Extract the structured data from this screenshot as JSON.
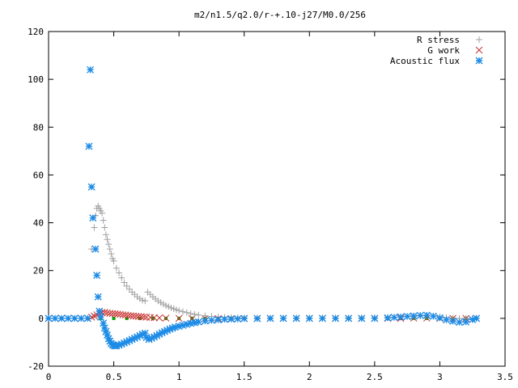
{
  "chart_data": {
    "type": "scatter",
    "title": "m2/n1.5/q2.0/r-+.10-j27/M0.0/256",
    "xlabel": "",
    "ylabel": "",
    "xlim": [
      0,
      3.5
    ],
    "ylim": [
      -20,
      120
    ],
    "x_ticks": [
      "0",
      "0.5",
      "1",
      "1.5",
      "2",
      "2.5",
      "3",
      "3.5"
    ],
    "y_ticks": [
      "-20",
      "0",
      "20",
      "40",
      "60",
      "80",
      "100",
      "120"
    ],
    "grid": false,
    "legend_position": "top-right",
    "series": [
      {
        "name": "R stress",
        "marker": "plus",
        "color": "#a0a0a0",
        "points": [
          [
            0.33,
            29
          ],
          [
            0.35,
            38
          ],
          [
            0.36,
            43
          ],
          [
            0.37,
            46
          ],
          [
            0.38,
            47
          ],
          [
            0.39,
            46
          ],
          [
            0.4,
            45
          ],
          [
            0.41,
            44
          ],
          [
            0.42,
            41
          ],
          [
            0.43,
            38
          ],
          [
            0.44,
            35
          ],
          [
            0.45,
            33
          ],
          [
            0.46,
            31
          ],
          [
            0.47,
            29
          ],
          [
            0.48,
            27
          ],
          [
            0.49,
            25
          ],
          [
            0.5,
            24
          ],
          [
            0.52,
            21
          ],
          [
            0.54,
            19
          ],
          [
            0.56,
            17
          ],
          [
            0.58,
            15
          ],
          [
            0.6,
            13.5
          ],
          [
            0.62,
            12.2
          ],
          [
            0.64,
            11
          ],
          [
            0.66,
            10
          ],
          [
            0.68,
            9
          ],
          [
            0.7,
            8.2
          ],
          [
            0.72,
            7.6
          ],
          [
            0.74,
            7.3
          ],
          [
            0.76,
            11
          ],
          [
            0.78,
            10
          ],
          [
            0.8,
            9
          ],
          [
            0.82,
            8.1
          ],
          [
            0.84,
            7.3
          ],
          [
            0.86,
            6.6
          ],
          [
            0.88,
            6
          ],
          [
            0.9,
            5.4
          ],
          [
            0.92,
            4.9
          ],
          [
            0.94,
            4.4
          ],
          [
            0.96,
            4
          ],
          [
            0.98,
            3.6
          ],
          [
            1.0,
            3.3
          ],
          [
            1.03,
            2.8
          ],
          [
            1.06,
            2.4
          ],
          [
            1.09,
            2
          ],
          [
            1.12,
            1.7
          ],
          [
            1.15,
            1.4
          ],
          [
            1.2,
            1.1
          ],
          [
            1.25,
            0.8
          ],
          [
            1.3,
            0.6
          ],
          [
            1.35,
            0.45
          ],
          [
            1.4,
            0.35
          ],
          [
            1.45,
            0.25
          ],
          [
            1.5,
            0.2
          ],
          [
            1.6,
            0.15
          ],
          [
            1.7,
            0.1
          ],
          [
            1.8,
            0.1
          ],
          [
            1.9,
            0.1
          ],
          [
            2.0,
            0.1
          ],
          [
            2.1,
            0.1
          ],
          [
            2.2,
            0.15
          ],
          [
            2.3,
            0.2
          ],
          [
            2.4,
            0.2
          ],
          [
            2.5,
            0.3
          ],
          [
            2.6,
            0.4
          ],
          [
            2.7,
            0.6
          ],
          [
            2.8,
            0.8
          ],
          [
            2.85,
            1
          ],
          [
            2.9,
            1.2
          ],
          [
            2.95,
            1
          ],
          [
            3.0,
            0.6
          ],
          [
            3.05,
            0.3
          ],
          [
            3.1,
            0.1
          ],
          [
            3.15,
            0
          ],
          [
            3.2,
            0
          ],
          [
            3.25,
            0
          ],
          [
            3.28,
            0
          ]
        ]
      },
      {
        "name": "G work",
        "marker": "cross",
        "color": "#c83232",
        "points": [
          [
            0.0,
            0
          ],
          [
            0.05,
            0
          ],
          [
            0.1,
            0
          ],
          [
            0.15,
            0
          ],
          [
            0.2,
            0
          ],
          [
            0.25,
            0
          ],
          [
            0.3,
            0
          ],
          [
            0.33,
            0.5
          ],
          [
            0.35,
            1
          ],
          [
            0.37,
            1.5
          ],
          [
            0.39,
            2
          ],
          [
            0.41,
            2.5
          ],
          [
            0.43,
            2.5
          ],
          [
            0.45,
            2.3
          ],
          [
            0.47,
            2.1
          ],
          [
            0.49,
            2
          ],
          [
            0.51,
            1.9
          ],
          [
            0.53,
            1.8
          ],
          [
            0.55,
            1.7
          ],
          [
            0.57,
            1.5
          ],
          [
            0.59,
            1.4
          ],
          [
            0.61,
            1.2
          ],
          [
            0.63,
            1.1
          ],
          [
            0.65,
            1
          ],
          [
            0.67,
            0.9
          ],
          [
            0.69,
            0.8
          ],
          [
            0.71,
            0.7
          ],
          [
            0.73,
            0.6
          ],
          [
            0.75,
            0.5
          ],
          [
            0.78,
            0.4
          ],
          [
            0.81,
            0.3
          ],
          [
            0.85,
            0.2
          ],
          [
            0.9,
            0.1
          ],
          [
            1.0,
            0
          ],
          [
            1.1,
            -0.1
          ],
          [
            1.2,
            -0.1
          ],
          [
            1.3,
            -0.1
          ],
          [
            1.4,
            -0.1
          ],
          [
            1.5,
            0
          ],
          [
            1.6,
            0
          ],
          [
            1.7,
            0
          ],
          [
            1.8,
            0
          ],
          [
            1.9,
            0
          ],
          [
            2.0,
            0
          ],
          [
            2.1,
            0
          ],
          [
            2.2,
            0
          ],
          [
            2.3,
            0
          ],
          [
            2.4,
            0
          ],
          [
            2.5,
            0
          ],
          [
            2.6,
            0
          ],
          [
            2.7,
            0
          ],
          [
            2.8,
            0.1
          ],
          [
            2.9,
            0.1
          ],
          [
            3.0,
            0
          ],
          [
            3.1,
            0
          ],
          [
            3.2,
            0
          ],
          [
            3.28,
            0
          ]
        ]
      },
      {
        "name": "Acoustic flux",
        "marker": "star",
        "color": "#1e8ce6",
        "points": [
          [
            0.0,
            0
          ],
          [
            0.05,
            0
          ],
          [
            0.1,
            0
          ],
          [
            0.15,
            0
          ],
          [
            0.2,
            0
          ],
          [
            0.25,
            0
          ],
          [
            0.3,
            0
          ],
          [
            0.31,
            72
          ],
          [
            0.32,
            104
          ],
          [
            0.33,
            55
          ],
          [
            0.34,
            42
          ],
          [
            0.36,
            29
          ],
          [
            0.37,
            18
          ],
          [
            0.38,
            9
          ],
          [
            0.39,
            3
          ],
          [
            0.4,
            0.5
          ],
          [
            0.42,
            -2
          ],
          [
            0.43,
            -4
          ],
          [
            0.44,
            -5.5
          ],
          [
            0.45,
            -7
          ],
          [
            0.46,
            -8.5
          ],
          [
            0.47,
            -9.5
          ],
          [
            0.48,
            -10.5
          ],
          [
            0.49,
            -11
          ],
          [
            0.5,
            -11.3
          ],
          [
            0.51,
            -11.5
          ],
          [
            0.52,
            -11.5
          ],
          [
            0.54,
            -11.2
          ],
          [
            0.56,
            -10.8
          ],
          [
            0.58,
            -10.3
          ],
          [
            0.6,
            -9.8
          ],
          [
            0.62,
            -9.3
          ],
          [
            0.64,
            -8.8
          ],
          [
            0.66,
            -8.3
          ],
          [
            0.68,
            -7.8
          ],
          [
            0.7,
            -7.2
          ],
          [
            0.72,
            -6.6
          ],
          [
            0.74,
            -6.2
          ],
          [
            0.75,
            -8
          ],
          [
            0.77,
            -8.8
          ],
          [
            0.79,
            -8.3
          ],
          [
            0.81,
            -7.8
          ],
          [
            0.83,
            -7.2
          ],
          [
            0.85,
            -6.6
          ],
          [
            0.87,
            -6
          ],
          [
            0.89,
            -5.5
          ],
          [
            0.91,
            -5
          ],
          [
            0.93,
            -4.5
          ],
          [
            0.95,
            -4.1
          ],
          [
            0.97,
            -3.7
          ],
          [
            1.0,
            -3.3
          ],
          [
            1.03,
            -2.9
          ],
          [
            1.06,
            -2.5
          ],
          [
            1.09,
            -2.1
          ],
          [
            1.12,
            -1.8
          ],
          [
            1.15,
            -1.5
          ],
          [
            1.2,
            -1.1
          ],
          [
            1.25,
            -0.8
          ],
          [
            1.3,
            -0.6
          ],
          [
            1.35,
            -0.4
          ],
          [
            1.4,
            -0.3
          ],
          [
            1.45,
            -0.2
          ],
          [
            1.5,
            -0.1
          ],
          [
            1.6,
            -0.1
          ],
          [
            1.7,
            0
          ],
          [
            1.8,
            0
          ],
          [
            1.9,
            0
          ],
          [
            2.0,
            0
          ],
          [
            2.1,
            0
          ],
          [
            2.2,
            0
          ],
          [
            2.3,
            0
          ],
          [
            2.4,
            0
          ],
          [
            2.5,
            0
          ],
          [
            2.6,
            0.2
          ],
          [
            2.65,
            0.4
          ],
          [
            2.7,
            0.6
          ],
          [
            2.75,
            0.8
          ],
          [
            2.8,
            1
          ],
          [
            2.85,
            1.2
          ],
          [
            2.9,
            1.3
          ],
          [
            2.95,
            0.9
          ],
          [
            3.0,
            0.2
          ],
          [
            3.05,
            -0.6
          ],
          [
            3.1,
            -1.2
          ],
          [
            3.15,
            -1.6
          ],
          [
            3.2,
            -1.5
          ],
          [
            3.25,
            -0.5
          ],
          [
            3.28,
            0
          ]
        ]
      },
      {
        "name": "",
        "marker": "square",
        "color": "#00a000",
        "points": [
          [
            0.0,
            0
          ],
          [
            0.1,
            0
          ],
          [
            0.2,
            0
          ],
          [
            0.3,
            0
          ],
          [
            0.4,
            0
          ],
          [
            0.5,
            0
          ],
          [
            0.6,
            0
          ],
          [
            0.7,
            0
          ],
          [
            0.8,
            0
          ],
          [
            0.9,
            0
          ],
          [
            1.0,
            0
          ],
          [
            1.1,
            0
          ],
          [
            1.2,
            0
          ],
          [
            1.3,
            0
          ],
          [
            1.4,
            0
          ],
          [
            1.5,
            0
          ],
          [
            1.6,
            0
          ],
          [
            1.7,
            0
          ],
          [
            1.8,
            0
          ],
          [
            1.9,
            0
          ],
          [
            2.0,
            0
          ],
          [
            2.1,
            0
          ],
          [
            2.2,
            0
          ],
          [
            2.3,
            0
          ],
          [
            2.4,
            0
          ],
          [
            2.5,
            0
          ],
          [
            2.6,
            0
          ],
          [
            2.7,
            0
          ],
          [
            2.8,
            0
          ],
          [
            2.9,
            0
          ],
          [
            3.0,
            0
          ],
          [
            3.1,
            0
          ],
          [
            3.2,
            0
          ],
          [
            3.28,
            0
          ]
        ]
      }
    ]
  }
}
